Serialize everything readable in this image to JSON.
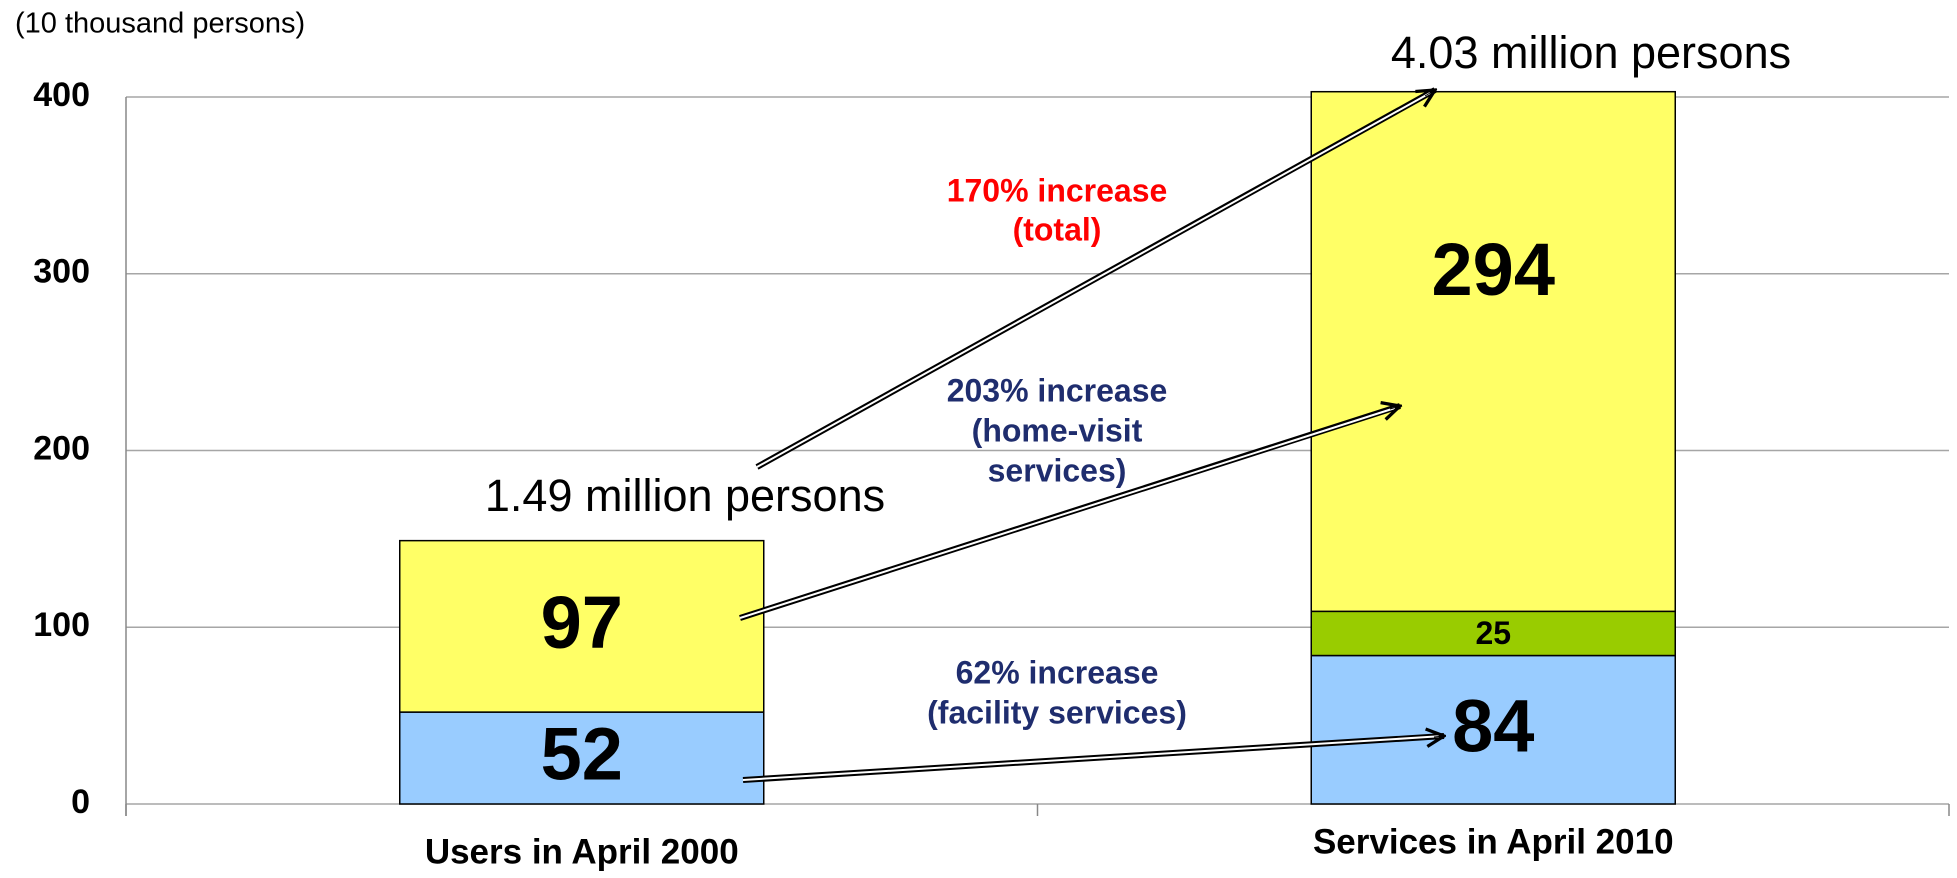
{
  "chart_data": {
    "type": "stacked_bar",
    "y_axis_label": "(10 thousand persons)",
    "categories": [
      "Users in April 2000",
      "Services in April 2010"
    ],
    "series": [
      {
        "color": "#99ccff",
        "values": [
          52,
          84
        ]
      },
      {
        "color": "#99cc00",
        "values": [
          null,
          25
        ]
      },
      {
        "color": "#ffff66",
        "values": [
          97,
          294
        ]
      }
    ],
    "ylim": [
      0,
      400
    ],
    "yticks": [
      0,
      100,
      200,
      300,
      400
    ],
    "grid": true,
    "annotations": [
      {
        "lines": [
          "1.49 million persons"
        ],
        "color": "#000000"
      },
      {
        "lines": [
          "4.03 million persons"
        ],
        "color": "#000000"
      },
      {
        "lines": [
          "170% increase",
          "(total)"
        ],
        "color": "#ff0000"
      },
      {
        "lines": [
          "203% increase",
          "(home-visit",
          "services)"
        ],
        "color": "#1f2d6e"
      },
      {
        "lines": [
          "62% increase",
          "(facility services)"
        ],
        "color": "#1f2d6e"
      }
    ]
  }
}
